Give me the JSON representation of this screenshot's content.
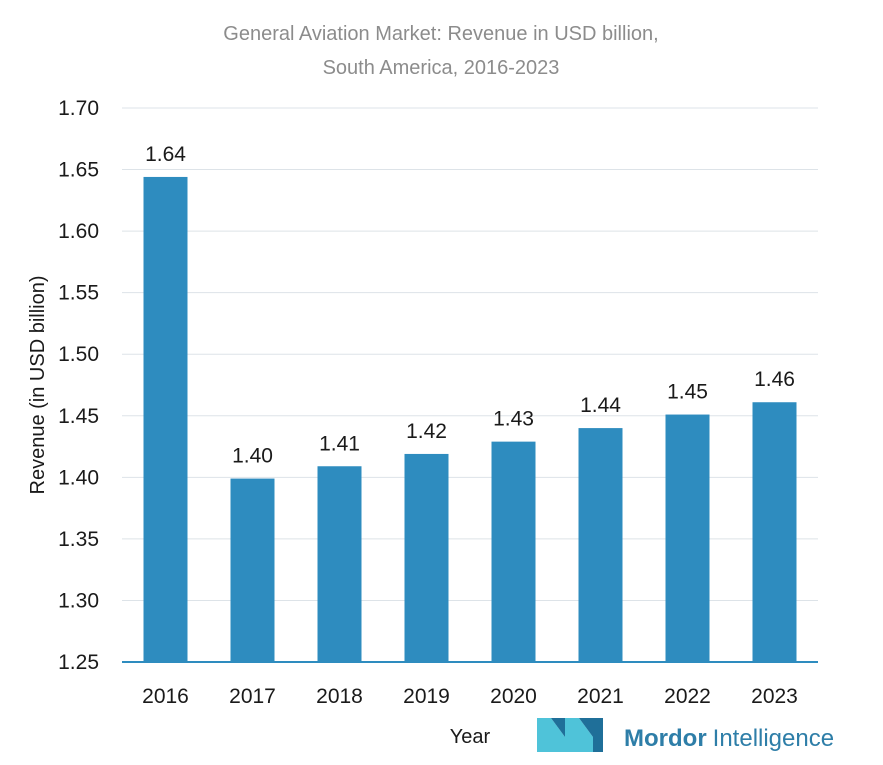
{
  "chart_data": {
    "type": "bar",
    "title": "General Aviation Market: Revenue in USD billion,",
    "subtitle": "South America, 2016-2023",
    "xlabel": "Year",
    "ylabel": "Revenue (in USD billion)",
    "categories": [
      "2016",
      "2017",
      "2018",
      "2019",
      "2020",
      "2021",
      "2022",
      "2023"
    ],
    "values": [
      1.644,
      1.399,
      1.409,
      1.419,
      1.429,
      1.44,
      1.451,
      1.461
    ],
    "data_labels": [
      "1.64",
      "1.40",
      "1.41",
      "1.42",
      "1.43",
      "1.44",
      "1.45",
      "1.46"
    ],
    "ylim": [
      1.25,
      1.7
    ],
    "yticks": [
      "1.70",
      "1.65",
      "1.60",
      "1.55",
      "1.50",
      "1.45",
      "1.40",
      "1.35",
      "1.30",
      "1.25"
    ],
    "grid": true,
    "bar_color": "#2e8cbf"
  },
  "logo": {
    "text_primary": "Mordor",
    "text_secondary": "Intelligence",
    "colors": {
      "dark": "#1f6f99",
      "light": "#4fc3d9"
    }
  }
}
